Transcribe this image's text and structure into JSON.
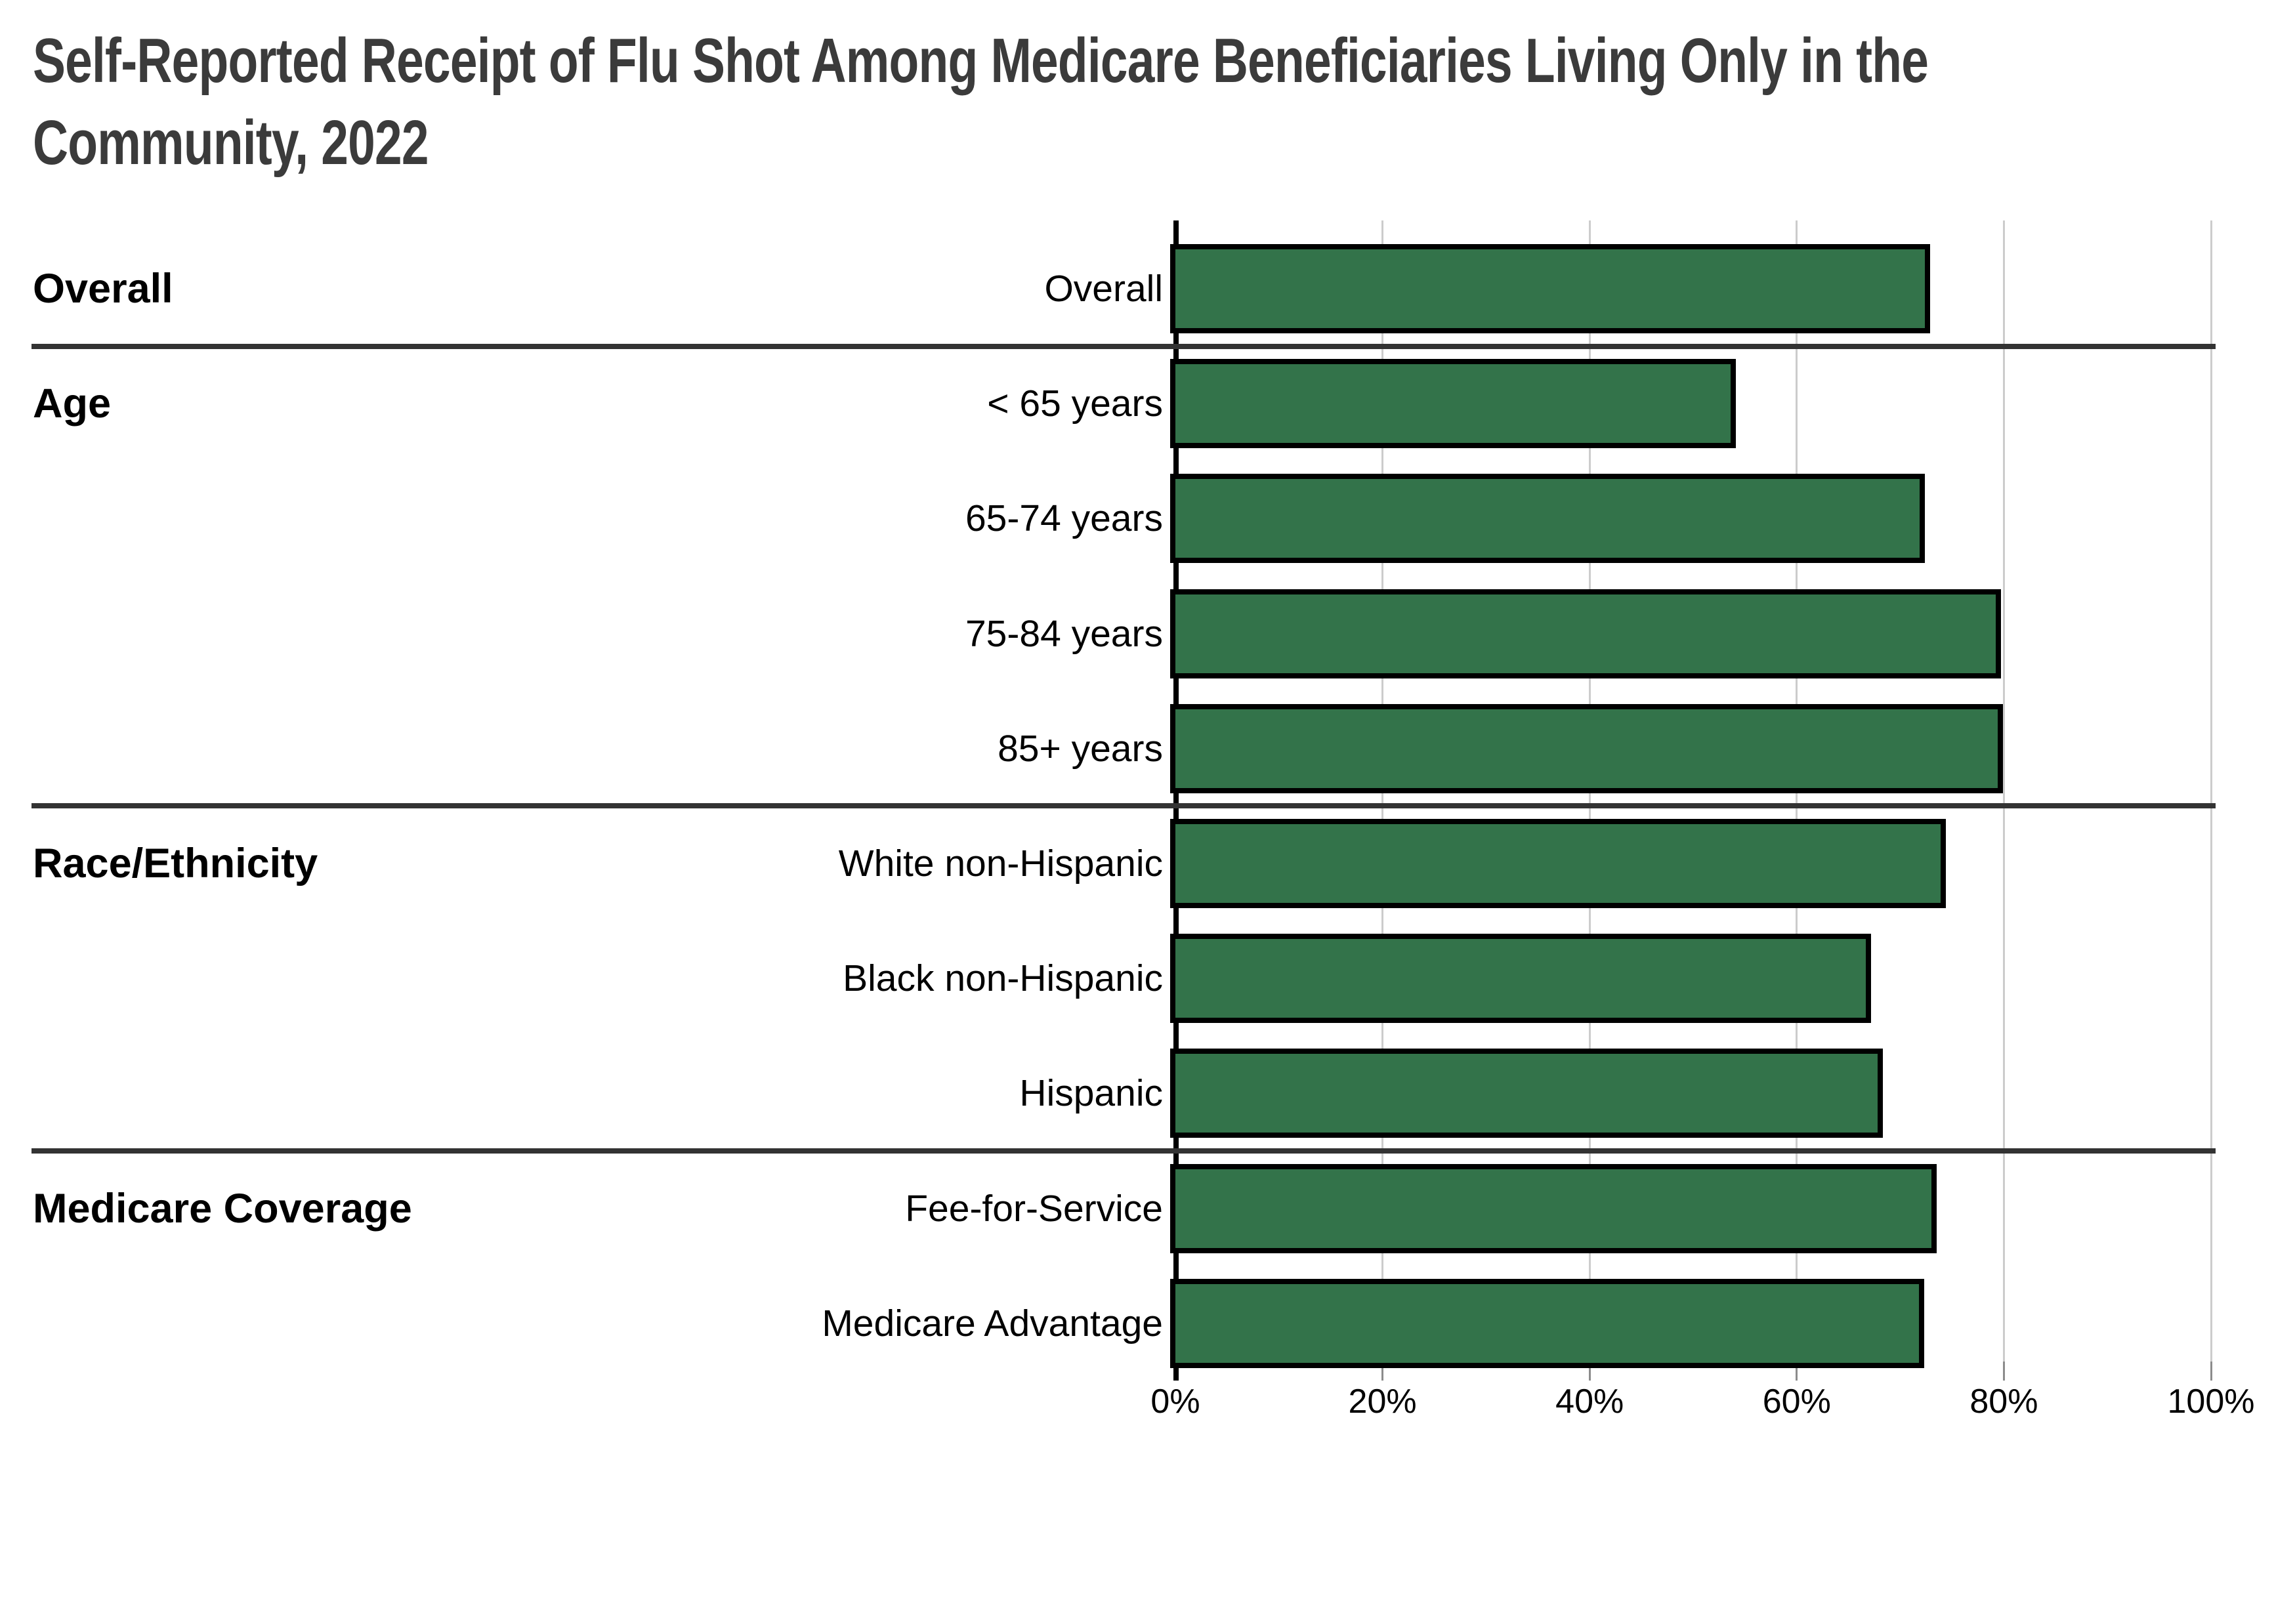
{
  "title_line1": "Self-Reported Receipt of Flu Shot Among Medicare Beneficiaries Living Only in the",
  "title_line2": "Community, 2022",
  "chart_data": {
    "type": "bar",
    "orientation": "horizontal",
    "title": "Self-Reported Receipt of Flu Shot Among Medicare Beneficiaries Living Only in the Community, 2022",
    "xlabel": "",
    "ylabel": "",
    "unit": "percent",
    "xlim": [
      0,
      100
    ],
    "grid": true,
    "legend": "none",
    "x_ticks": [
      "0%",
      "20%",
      "40%",
      "60%",
      "80%",
      "100%"
    ],
    "x_tick_values": [
      0,
      20,
      40,
      60,
      80,
      100
    ],
    "bar_color": "#33734a",
    "bar_border_color": "#000000",
    "groups": [
      {
        "label": "Overall",
        "rows": [
          {
            "label": "Overall",
            "value": 72.9
          }
        ]
      },
      {
        "label": "Age",
        "rows": [
          {
            "label": "< 65 years",
            "value": 54.1
          },
          {
            "label": "65-74 years",
            "value": 72.4
          },
          {
            "label": "75-84 years",
            "value": 79.7
          },
          {
            "label": "85+ years",
            "value": 79.9
          }
        ]
      },
      {
        "label": "Race/Ethnicity",
        "rows": [
          {
            "label": "White non-Hispanic",
            "value": 74.4
          },
          {
            "label": "Black non-Hispanic",
            "value": 67.2
          },
          {
            "label": "Hispanic",
            "value": 68.3
          }
        ]
      },
      {
        "label": "Medicare Coverage",
        "rows": [
          {
            "label": "Fee-for-Service",
            "value": 73.5
          },
          {
            "label": "Medicare Advantage",
            "value": 72.3
          }
        ]
      }
    ]
  }
}
